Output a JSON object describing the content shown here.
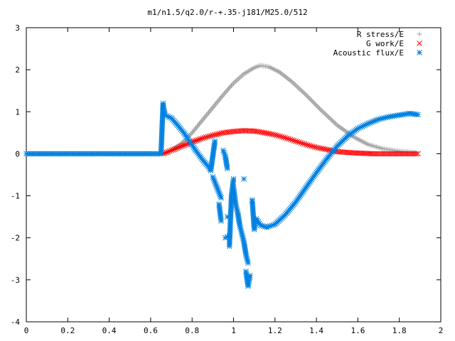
{
  "chart_data": {
    "type": "scatter",
    "title": "m1/n1.5/q2.0/r-+.35-j181/M25.0/512",
    "xlim": [
      0,
      2
    ],
    "ylim": [
      -4,
      3
    ],
    "x_ticks": [
      "0",
      "0.2",
      "0.4",
      "0.6",
      "0.8",
      "1",
      "1.2",
      "1.4",
      "1.6",
      "1.8",
      "2"
    ],
    "y_ticks": [
      "3",
      "2",
      "1",
      "0",
      "-1",
      "-2",
      "-3",
      "-4"
    ],
    "legend_position": "top-right",
    "grid": false,
    "series": [
      {
        "name": "R stress/E",
        "marker": "plus",
        "color": "#a0a0a0",
        "points": [
          [
            0.66,
            0.0
          ],
          [
            0.7,
            0.08
          ],
          [
            0.75,
            0.25
          ],
          [
            0.8,
            0.5
          ],
          [
            0.85,
            0.8
          ],
          [
            0.9,
            1.1
          ],
          [
            0.95,
            1.4
          ],
          [
            1.0,
            1.68
          ],
          [
            1.05,
            1.9
          ],
          [
            1.1,
            2.05
          ],
          [
            1.13,
            2.1
          ],
          [
            1.17,
            2.07
          ],
          [
            1.22,
            1.95
          ],
          [
            1.28,
            1.72
          ],
          [
            1.35,
            1.4
          ],
          [
            1.42,
            1.05
          ],
          [
            1.5,
            0.68
          ],
          [
            1.58,
            0.4
          ],
          [
            1.65,
            0.22
          ],
          [
            1.72,
            0.12
          ],
          [
            1.8,
            0.06
          ],
          [
            1.88,
            0.03
          ]
        ]
      },
      {
        "name": "G work/E",
        "marker": "cross",
        "color": "#ff0000",
        "points": [
          [
            0.66,
            0.0
          ],
          [
            0.7,
            0.08
          ],
          [
            0.75,
            0.18
          ],
          [
            0.8,
            0.28
          ],
          [
            0.85,
            0.37
          ],
          [
            0.9,
            0.44
          ],
          [
            0.95,
            0.5
          ],
          [
            1.0,
            0.53
          ],
          [
            1.05,
            0.55
          ],
          [
            1.1,
            0.54
          ],
          [
            1.15,
            0.5
          ],
          [
            1.2,
            0.45
          ],
          [
            1.25,
            0.38
          ],
          [
            1.3,
            0.3
          ],
          [
            1.35,
            0.22
          ],
          [
            1.4,
            0.15
          ],
          [
            1.45,
            0.1
          ],
          [
            1.5,
            0.05
          ],
          [
            1.58,
            0.02
          ],
          [
            1.68,
            0.0
          ],
          [
            1.78,
            0.0
          ],
          [
            1.89,
            0.0
          ]
        ]
      },
      {
        "name": "Acoustic flux/E",
        "marker": "star",
        "color": "#0080e0",
        "points": [
          [
            0.0,
            0.0
          ],
          [
            0.1,
            0.0
          ],
          [
            0.2,
            0.0
          ],
          [
            0.3,
            0.0
          ],
          [
            0.4,
            0.0
          ],
          [
            0.5,
            0.0
          ],
          [
            0.6,
            0.0
          ],
          [
            0.65,
            0.0
          ],
          [
            0.66,
            1.2
          ],
          [
            0.66,
            1.15
          ],
          [
            0.67,
            0.92
          ],
          [
            0.7,
            0.85
          ],
          [
            0.73,
            0.68
          ],
          [
            0.76,
            0.5
          ],
          [
            0.79,
            0.28
          ],
          [
            0.82,
            0.06
          ],
          [
            0.85,
            -0.14
          ],
          [
            0.88,
            -0.32
          ],
          [
            0.89,
            -0.4
          ],
          [
            0.91,
            0.3
          ],
          [
            0.9,
            -0.55
          ],
          [
            0.92,
            -0.8
          ],
          [
            0.94,
            -1.05
          ],
          [
            0.93,
            -1.2
          ],
          [
            0.94,
            -1.6
          ],
          [
            0.95,
            0.08
          ],
          [
            0.96,
            -0.05
          ],
          [
            0.97,
            -0.35
          ],
          [
            0.97,
            -1.5
          ],
          [
            0.96,
            -2.0
          ],
          [
            0.98,
            -1.95
          ],
          [
            0.98,
            -2.2
          ],
          [
            0.99,
            -1.0
          ],
          [
            1.0,
            -0.6
          ],
          [
            1.0,
            -0.8
          ],
          [
            1.01,
            -1.2
          ],
          [
            1.02,
            -1.4
          ],
          [
            1.03,
            -1.7
          ],
          [
            1.04,
            -1.9
          ],
          [
            1.05,
            -2.1
          ],
          [
            1.06,
            -2.4
          ],
          [
            1.07,
            -2.6
          ],
          [
            1.05,
            -0.6
          ],
          [
            1.06,
            -2.8
          ],
          [
            1.07,
            -3.15
          ],
          [
            1.08,
            -2.9
          ],
          [
            1.09,
            -1.1
          ],
          [
            1.1,
            -1.8
          ],
          [
            1.11,
            -1.55
          ],
          [
            1.13,
            -1.7
          ],
          [
            1.16,
            -1.75
          ],
          [
            1.2,
            -1.68
          ],
          [
            1.25,
            -1.45
          ],
          [
            1.3,
            -1.15
          ],
          [
            1.35,
            -0.8
          ],
          [
            1.4,
            -0.45
          ],
          [
            1.45,
            -0.12
          ],
          [
            1.5,
            0.18
          ],
          [
            1.55,
            0.42
          ],
          [
            1.6,
            0.6
          ],
          [
            1.65,
            0.72
          ],
          [
            1.7,
            0.82
          ],
          [
            1.75,
            0.88
          ],
          [
            1.8,
            0.92
          ],
          [
            1.85,
            0.96
          ],
          [
            1.89,
            0.93
          ]
        ]
      }
    ]
  }
}
